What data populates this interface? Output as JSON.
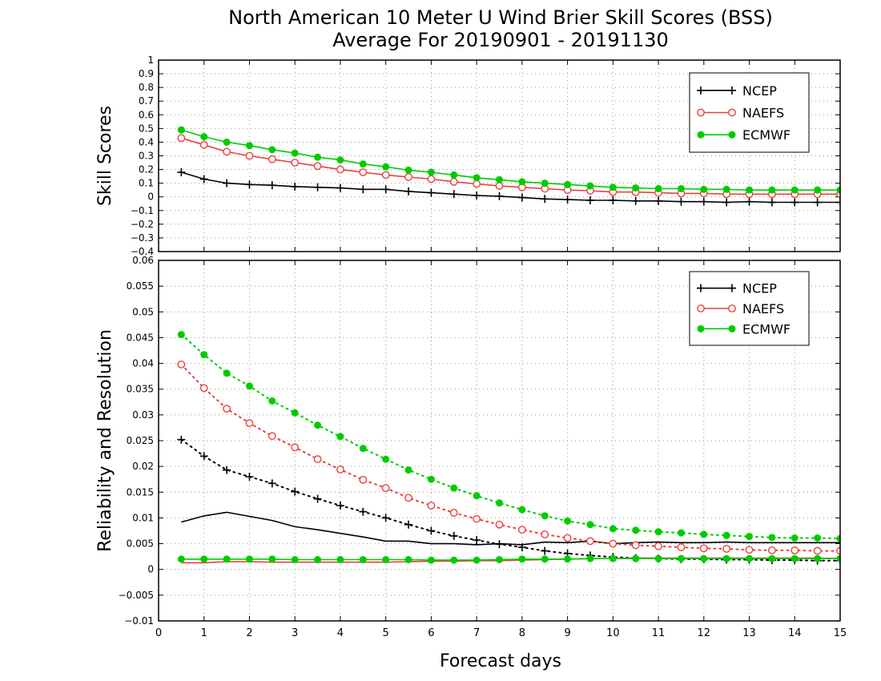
{
  "chart_data": {
    "title_line1": "North American 10 Meter U Wind Brier Skill Scores (BSS)",
    "title_line2": "Average For 20190901 - 20191130",
    "xlabel": "Forecast days",
    "xlim": [
      0,
      15
    ],
    "x_ticks": [
      "0",
      "1",
      "2",
      "3",
      "4",
      "5",
      "6",
      "7",
      "8",
      "9",
      "10",
      "11",
      "12",
      "13",
      "14",
      "15"
    ],
    "colors": {
      "NCEP": "#000000",
      "NAEFS": "#e8403c",
      "ECMWF": "#00cc00"
    },
    "x": [
      0.5,
      1,
      1.5,
      2,
      2.5,
      3,
      3.5,
      4,
      4.5,
      5,
      5.5,
      6,
      6.5,
      7,
      7.5,
      8,
      8.5,
      9,
      9.5,
      10,
      10.5,
      11,
      11.5,
      12,
      12.5,
      13,
      13.5,
      14,
      14.5,
      15
    ],
    "panels": [
      {
        "type": "line",
        "ylabel": "Skill Scores",
        "ylim": [
          -0.4,
          1.0
        ],
        "y_ticks": [
          "−0.4",
          "−0.3",
          "−0.2",
          "−0.1",
          "0",
          "0.1",
          "0.2",
          "0.3",
          "0.4",
          "0.5",
          "0.6",
          "0.7",
          "0.8",
          "0.9",
          "1"
        ],
        "grid": true,
        "legend_position": "top-right",
        "legend": [
          "NCEP",
          "NAEFS",
          "ECMWF"
        ],
        "series": [
          {
            "name": "NCEP",
            "style": "solid",
            "marker": "plus",
            "values": [
              0.18,
              0.13,
              0.1,
              0.09,
              0.085,
              0.075,
              0.07,
              0.065,
              0.055,
              0.055,
              0.04,
              0.03,
              0.02,
              0.01,
              0.005,
              -0.005,
              -0.015,
              -0.02,
              -0.025,
              -0.025,
              -0.03,
              -0.03,
              -0.035,
              -0.035,
              -0.04,
              -0.035,
              -0.04,
              -0.04,
              -0.04,
              -0.04
            ]
          },
          {
            "name": "NAEFS",
            "style": "solid",
            "marker": "open-circle",
            "values": [
              0.43,
              0.38,
              0.33,
              0.3,
              0.275,
              0.25,
              0.225,
              0.2,
              0.18,
              0.16,
              0.145,
              0.13,
              0.11,
              0.095,
              0.08,
              0.07,
              0.06,
              0.05,
              0.045,
              0.035,
              0.035,
              0.03,
              0.025,
              0.025,
              0.02,
              0.02,
              0.02,
              0.02,
              0.02,
              0.02
            ]
          },
          {
            "name": "ECMWF",
            "style": "solid",
            "marker": "filled-circle",
            "values": [
              0.49,
              0.44,
              0.4,
              0.375,
              0.345,
              0.32,
              0.29,
              0.27,
              0.24,
              0.22,
              0.195,
              0.18,
              0.16,
              0.14,
              0.125,
              0.11,
              0.1,
              0.09,
              0.08,
              0.07,
              0.065,
              0.06,
              0.06,
              0.055,
              0.055,
              0.05,
              0.05,
              0.05,
              0.05,
              0.05
            ]
          }
        ]
      },
      {
        "type": "line",
        "ylabel": "Reliability and Resolution",
        "ylim": [
          -0.01,
          0.06
        ],
        "y_ticks": [
          "−0.01",
          "−0.005",
          "0",
          "0.005",
          "0.01",
          "0.015",
          "0.02",
          "0.025",
          "0.03",
          "0.035",
          "0.04",
          "0.045",
          "0.05",
          "0.055",
          "0.06"
        ],
        "grid": true,
        "legend_position": "top-right",
        "legend": [
          "NCEP",
          "NAEFS",
          "ECMWF"
        ],
        "series": [
          {
            "name": "NCEP",
            "role": "resolution",
            "style": "dotted",
            "marker": "plus",
            "values": [
              0.0252,
              0.022,
              0.0193,
              0.018,
              0.0167,
              0.0151,
              0.0137,
              0.0124,
              0.0112,
              0.01,
              0.0087,
              0.0075,
              0.0065,
              0.0057,
              0.0049,
              0.0043,
              0.0036,
              0.0031,
              0.0027,
              0.0024,
              0.0022,
              0.0021,
              0.002,
              0.002,
              0.0019,
              0.0019,
              0.0018,
              0.0018,
              0.0017,
              0.0017
            ]
          },
          {
            "name": "NCEP",
            "role": "reliability",
            "style": "solid",
            "marker": "none",
            "values": [
              0.0092,
              0.0104,
              0.0111,
              0.0103,
              0.0095,
              0.0083,
              0.0077,
              0.007,
              0.0063,
              0.0055,
              0.0055,
              0.005,
              0.005,
              0.0048,
              0.005,
              0.0048,
              0.0053,
              0.0052,
              0.0055,
              0.005,
              0.0052,
              0.0053,
              0.0052,
              0.0052,
              0.0053,
              0.0052,
              0.0052,
              0.0052,
              0.0052,
              0.0052
            ]
          },
          {
            "name": "NAEFS",
            "role": "resolution",
            "style": "dotted",
            "marker": "open-circle",
            "values": [
              0.0398,
              0.0352,
              0.0312,
              0.0284,
              0.0259,
              0.0237,
              0.0214,
              0.0194,
              0.0174,
              0.0158,
              0.0139,
              0.0124,
              0.011,
              0.0098,
              0.0087,
              0.0077,
              0.0068,
              0.0061,
              0.0055,
              0.005,
              0.0047,
              0.0045,
              0.0043,
              0.0041,
              0.004,
              0.0038,
              0.0037,
              0.0037,
              0.0036,
              0.0036
            ]
          },
          {
            "name": "NAEFS",
            "role": "reliability",
            "style": "solid",
            "marker": "none",
            "values": [
              0.0013,
              0.0013,
              0.0015,
              0.0015,
              0.0014,
              0.0014,
              0.0014,
              0.0014,
              0.0014,
              0.0014,
              0.0015,
              0.0016,
              0.0016,
              0.0017,
              0.0017,
              0.0018,
              0.0019,
              0.002,
              0.0021,
              0.0021,
              0.0022,
              0.0022,
              0.0022,
              0.0022,
              0.0022,
              0.0022,
              0.0022,
              0.0022,
              0.0022,
              0.0021
            ]
          },
          {
            "name": "ECMWF",
            "role": "resolution",
            "style": "dotted",
            "marker": "filled-circle",
            "values": [
              0.0456,
              0.0417,
              0.0381,
              0.0356,
              0.0327,
              0.0304,
              0.028,
              0.0258,
              0.0235,
              0.0214,
              0.0193,
              0.0175,
              0.0158,
              0.0143,
              0.0129,
              0.0116,
              0.0104,
              0.0094,
              0.0087,
              0.0079,
              0.0076,
              0.0073,
              0.0071,
              0.0068,
              0.0066,
              0.0064,
              0.0062,
              0.0061,
              0.0061,
              0.006
            ]
          },
          {
            "name": "ECMWF",
            "role": "reliability",
            "style": "solid",
            "marker": "filled-circle",
            "values": [
              0.002,
              0.002,
              0.002,
              0.002,
              0.002,
              0.0019,
              0.0019,
              0.0019,
              0.0019,
              0.0019,
              0.0019,
              0.0018,
              0.0018,
              0.0018,
              0.0019,
              0.002,
              0.002,
              0.002,
              0.0021,
              0.0021,
              0.0021,
              0.0021,
              0.0021,
              0.0021,
              0.0021,
              0.0021,
              0.0021,
              0.0021,
              0.0021,
              0.0021
            ]
          }
        ]
      }
    ]
  }
}
